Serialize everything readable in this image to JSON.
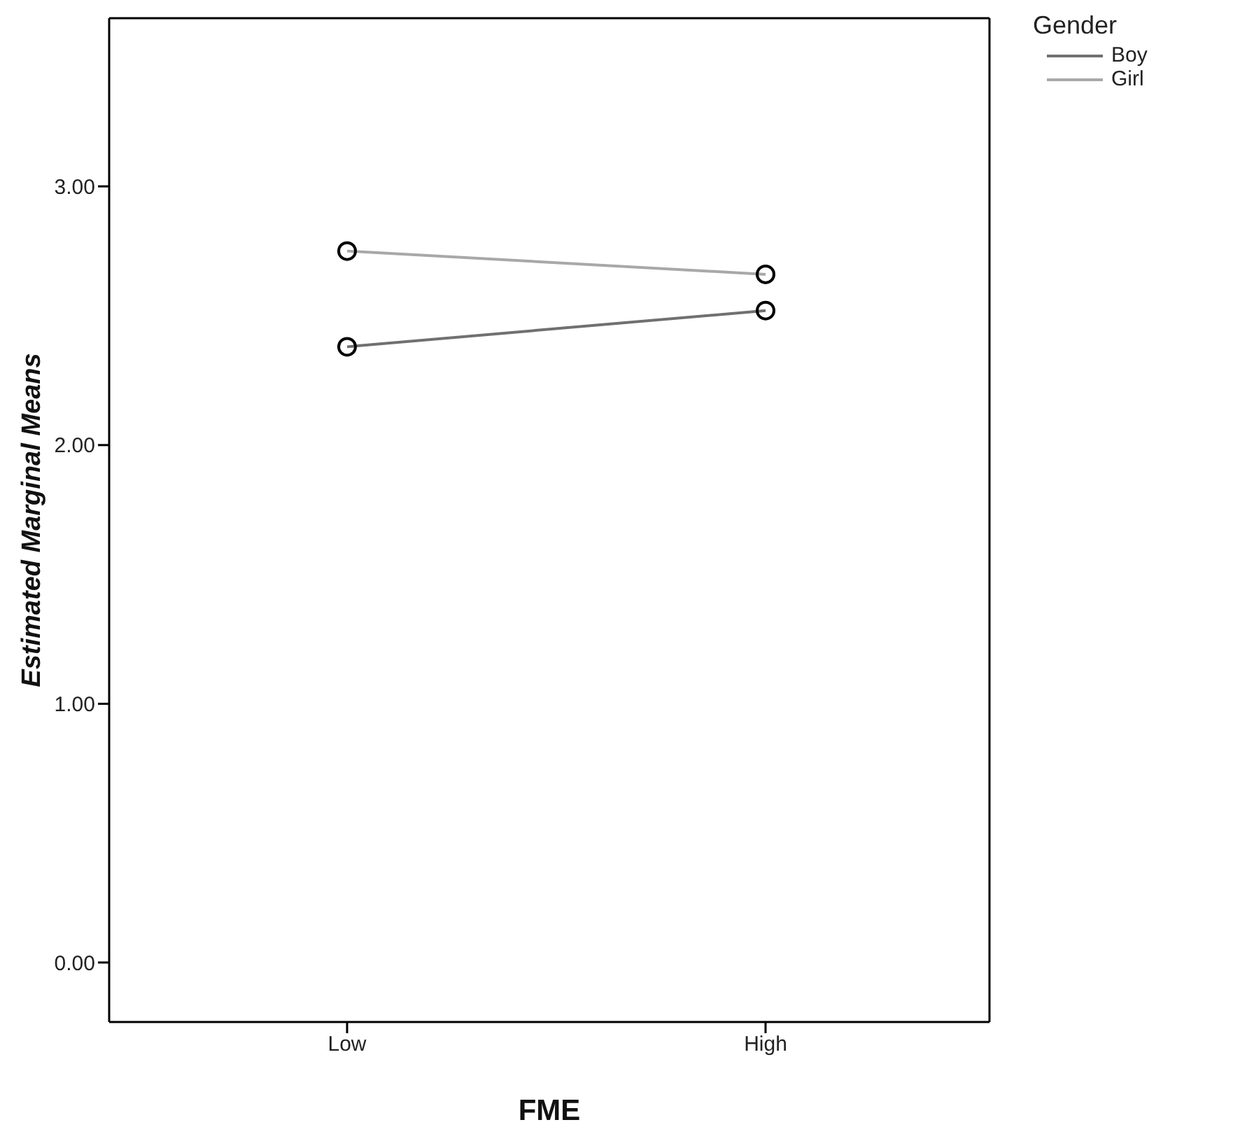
{
  "chart_data": {
    "type": "line",
    "xlabel": "FME",
    "ylabel": "Estimated Marginal Means",
    "legend_title": "Gender",
    "categories": [
      "Low",
      "High"
    ],
    "series": [
      {
        "name": "Boy",
        "color": "#707070",
        "values": [
          2.38,
          2.52
        ]
      },
      {
        "name": "Girl",
        "color": "#a8a8a8",
        "values": [
          2.75,
          2.66
        ]
      }
    ],
    "ylim": [
      -0.23,
      3.65
    ],
    "yticks": [
      {
        "value": 0,
        "label": "0.00"
      },
      {
        "value": 1,
        "label": "1.00"
      },
      {
        "value": 2,
        "label": "2.00"
      },
      {
        "value": 3,
        "label": "3.00"
      }
    ],
    "grid": false,
    "legend": "top right",
    "marker": "circle",
    "line_style": "solid"
  }
}
